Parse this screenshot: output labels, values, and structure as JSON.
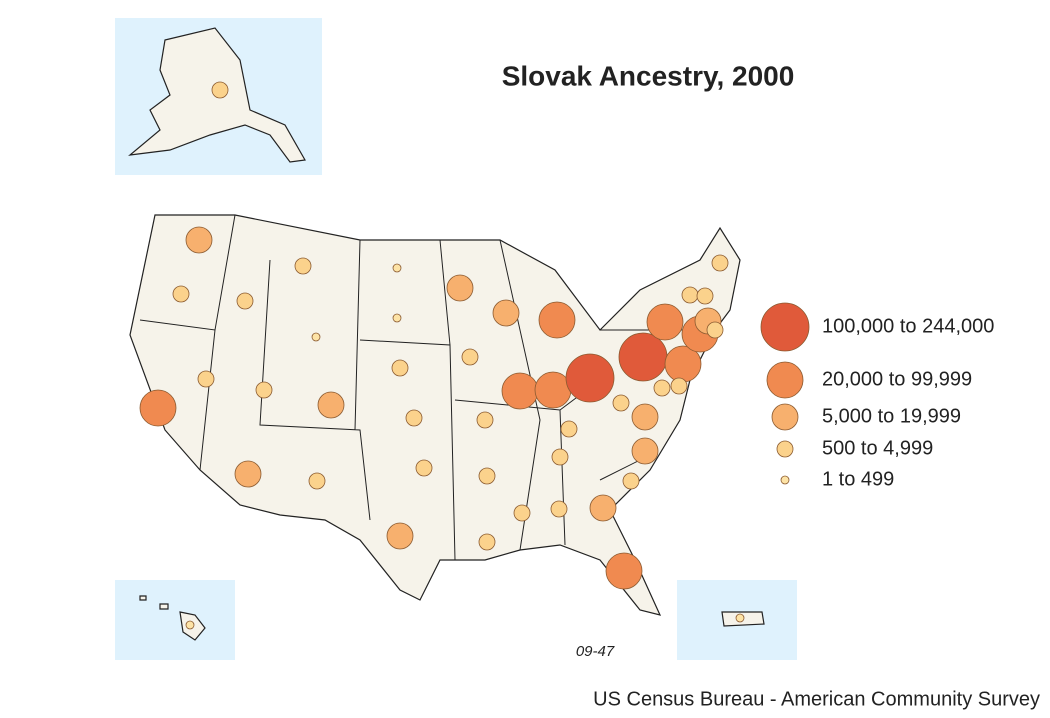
{
  "title": "Slovak Ancestry, 2000",
  "legend": [
    {
      "label": "100,000 to 244,000",
      "color": "#e05a3a"
    },
    {
      "label": "20,000 to 99,999",
      "color": "#f08a50"
    },
    {
      "label": "5,000 to 19,999",
      "color": "#f7b06e"
    },
    {
      "label": "500 to 4,999",
      "color": "#fbd28c"
    },
    {
      "label": "1 to 499",
      "color": "#fde3a6"
    }
  ],
  "map_code": "09-47",
  "source": "US Census Bureau - American Community Survey"
}
